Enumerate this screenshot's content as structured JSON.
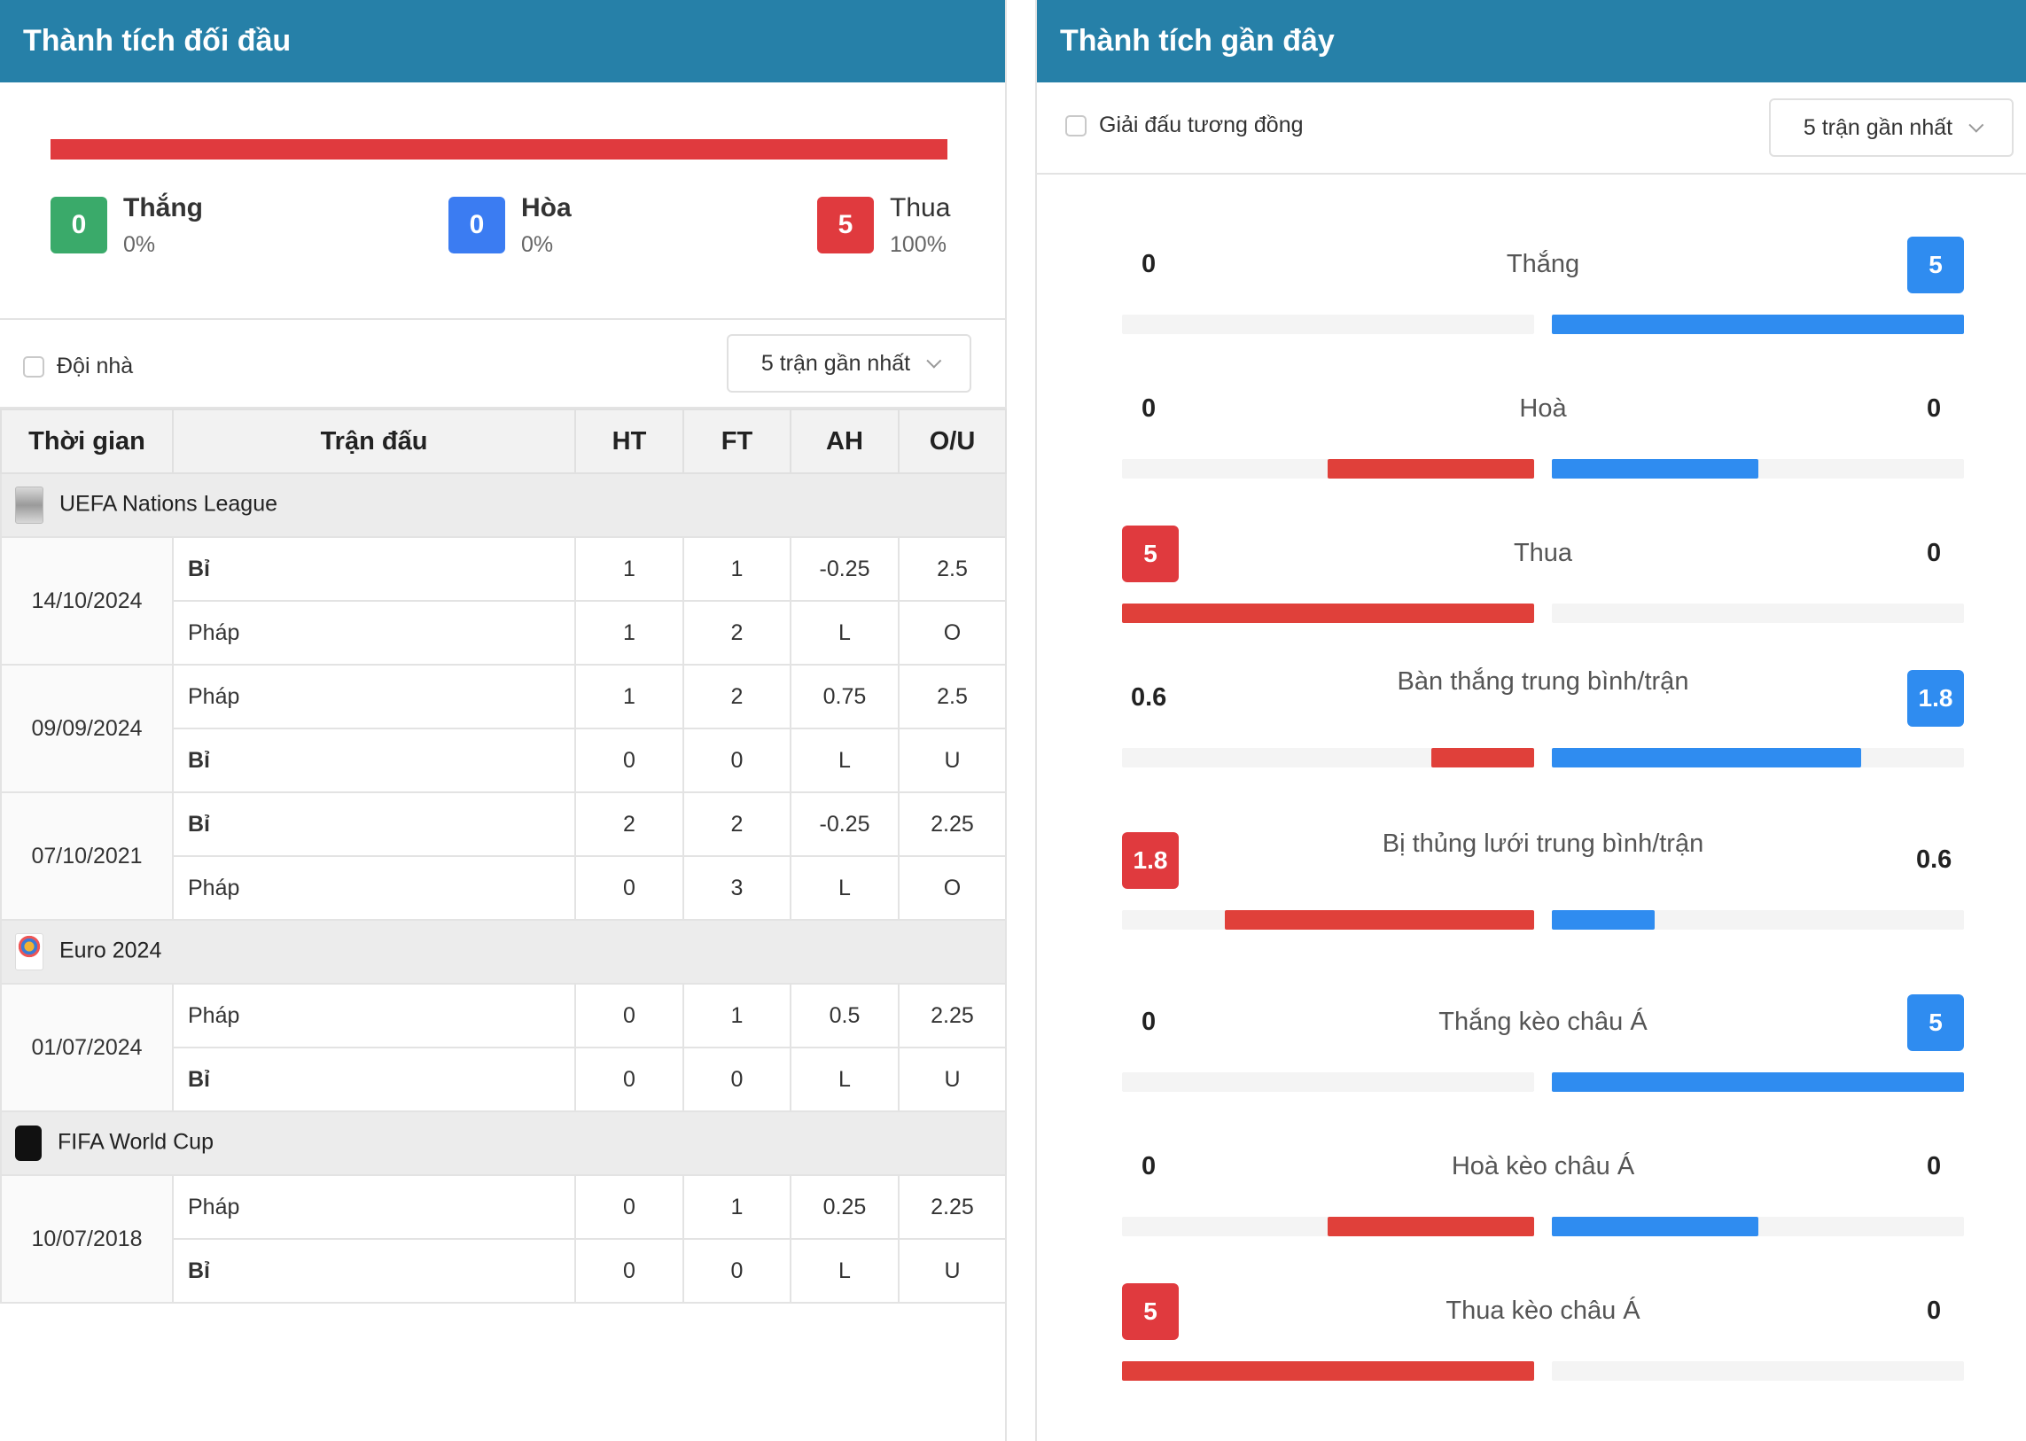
{
  "left": {
    "title": "Thành tích đối đầu",
    "summary": {
      "win": {
        "count": "0",
        "label": "Thắng",
        "pct": "0%"
      },
      "draw": {
        "count": "0",
        "label": "Hòa",
        "pct": "0%"
      },
      "loss": {
        "count": "5",
        "label": "Thua",
        "pct": "100%"
      }
    },
    "home_filter_label": "Đội nhà",
    "select_value": "5 trận gần nhất",
    "columns": [
      "Thời gian",
      "Trận đấu",
      "HT",
      "FT",
      "AH",
      "O/U"
    ],
    "leagues": [
      {
        "name": "UEFA Nations League",
        "icon": "uefa-nations-league-logo",
        "matches": [
          {
            "date": "14/10/2024",
            "rows": [
              {
                "team": "Bỉ",
                "bold": true,
                "ht": "1",
                "ft": "1",
                "ah": "-0.25",
                "ou": "2.5",
                "ah_color": "red",
                "ou_color": "blue"
              },
              {
                "team": "Pháp",
                "bold": false,
                "ht": "1",
                "ft": "2",
                "ah": "L",
                "ou": "O",
                "ah_color": "red",
                "ou_color": "blue"
              }
            ]
          },
          {
            "date": "09/09/2024",
            "rows": [
              {
                "team": "Pháp",
                "bold": false,
                "ht": "1",
                "ft": "2",
                "ah": "0.75",
                "ou": "2.5",
                "ah_color": "red",
                "ou_color": "red"
              },
              {
                "team": "Bỉ",
                "bold": true,
                "ht": "0",
                "ft": "0",
                "ah": "L",
                "ou": "U",
                "ah_color": "red",
                "ou_color": "red"
              }
            ]
          },
          {
            "date": "07/10/2021",
            "rows": [
              {
                "team": "Bỉ",
                "bold": true,
                "ht": "2",
                "ft": "2",
                "ah": "-0.25",
                "ou": "2.25",
                "ah_color": "red",
                "ou_color": "blue"
              },
              {
                "team": "Pháp",
                "bold": false,
                "ht": "0",
                "ft": "3",
                "ah": "L",
                "ou": "O",
                "ah_color": "red",
                "ou_color": "blue"
              }
            ]
          }
        ]
      },
      {
        "name": "Euro 2024",
        "icon": "euro-2024-logo",
        "matches": [
          {
            "date": "01/07/2024",
            "rows": [
              {
                "team": "Pháp",
                "bold": false,
                "ht": "0",
                "ft": "1",
                "ah": "0.5",
                "ou": "2.25",
                "ah_color": "red",
                "ou_color": "red"
              },
              {
                "team": "Bỉ",
                "bold": true,
                "ht": "0",
                "ft": "0",
                "ah": "L",
                "ou": "U",
                "ah_color": "red",
                "ou_color": "red"
              }
            ]
          }
        ]
      },
      {
        "name": "FIFA World Cup",
        "icon": "fifa-world-cup-logo",
        "matches": [
          {
            "date": "10/07/2018",
            "rows": [
              {
                "team": "Pháp",
                "bold": false,
                "ht": "0",
                "ft": "1",
                "ah": "0.25",
                "ou": "2.25",
                "ah_color": "red",
                "ou_color": "red"
              },
              {
                "team": "Bỉ",
                "bold": true,
                "ht": "0",
                "ft": "0",
                "ah": "L",
                "ou": "U",
                "ah_color": "red",
                "ou_color": "red"
              }
            ]
          }
        ]
      }
    ]
  },
  "right": {
    "title": "Thành tích gần đây",
    "filter_label": "Giải đấu tương đồng",
    "select_value": "5 trận gần nhất",
    "stats": [
      {
        "label": "Thắng",
        "left": "0",
        "right": "5",
        "left_badge": false,
        "right_badge": true,
        "left_fill": 0,
        "right_fill": 1
      },
      {
        "label": "Hoà",
        "left": "0",
        "right": "0",
        "left_badge": false,
        "right_badge": false,
        "left_fill": 0.5,
        "right_fill": 0.5
      },
      {
        "label": "Thua",
        "left": "5",
        "right": "0",
        "left_badge": true,
        "right_badge": false,
        "left_fill": 1,
        "right_fill": 0
      },
      {
        "label": "Bàn thắng trung bình/trận",
        "left": "0.6",
        "right": "1.8",
        "left_badge": false,
        "right_badge": true,
        "left_fill": 0.25,
        "right_fill": 0.75
      },
      {
        "label": "Bị thủng lưới trung bình/trận",
        "left": "1.8",
        "right": "0.6",
        "left_badge": true,
        "right_badge": false,
        "left_fill": 0.75,
        "right_fill": 0.25
      },
      {
        "label": "Thắng kèo châu Á",
        "left": "0",
        "right": "5",
        "left_badge": false,
        "right_badge": true,
        "left_fill": 0,
        "right_fill": 1
      },
      {
        "label": "Hoà kèo châu Á",
        "left": "0",
        "right": "0",
        "left_badge": false,
        "right_badge": false,
        "left_fill": 0.5,
        "right_fill": 0.5
      },
      {
        "label": "Thua kèo châu Á",
        "left": "5",
        "right": "0",
        "left_badge": true,
        "right_badge": false,
        "left_fill": 1,
        "right_fill": 0
      }
    ]
  },
  "colors": {
    "header": "#2680a8",
    "win": "#3aaa6a",
    "draw": "#3b7cf2",
    "loss": "#e03a3e",
    "bar_red": "#e0403a",
    "bar_blue": "#2f8cf0"
  }
}
